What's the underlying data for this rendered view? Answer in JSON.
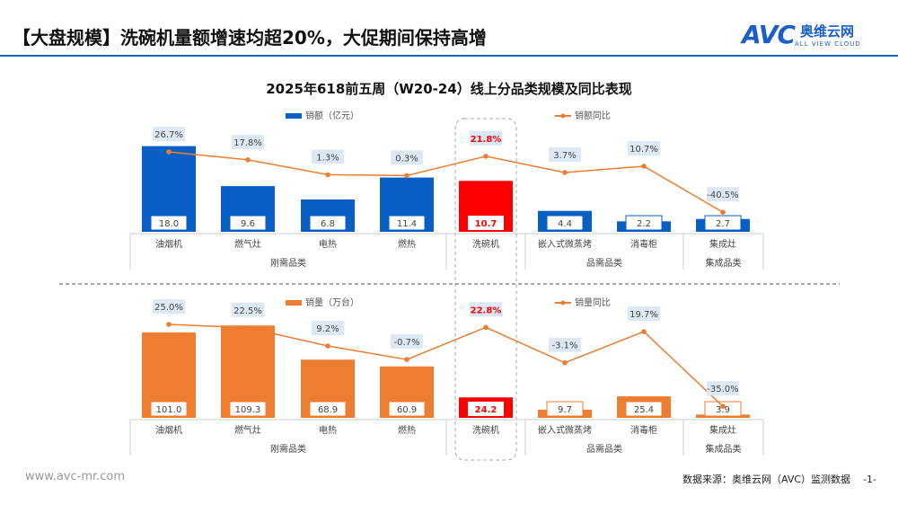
{
  "header": {
    "title": "【大盘规模】洗碗机量额增速均超20%，大促期间保持高增",
    "logo_text": "AVC",
    "logo_cn": "奥维云网",
    "logo_en": "ALL VIEW CLOUD"
  },
  "footer": {
    "website": "www.avc-mr.com",
    "source": "数据来源：奥维云网（AVC）监测数据",
    "page": "-1-"
  },
  "colors": {
    "blue": "#0a5fc4",
    "orange": "#ed7d31",
    "red": "#ff0000",
    "line": "#ed7d31"
  },
  "chart_data": [
    {
      "type": "bar",
      "title": "2025年618前五周（W20-24）线上分品类规模及同比表现",
      "categories": [
        "油烟机",
        "燃气灶",
        "电热",
        "燃热",
        "洗碗机",
        "嵌入式微蒸烤",
        "消毒柜",
        "集成灶"
      ],
      "groups": [
        {
          "label": "刚需品类",
          "span": 4
        },
        {
          "label": "",
          "span": 1
        },
        {
          "label": "品需品类",
          "span": 2
        },
        {
          "label": "集成品类",
          "span": 1
        }
      ],
      "series": [
        {
          "name": "销额（亿元）",
          "type": "bar",
          "values": [
            18.0,
            9.6,
            6.8,
            11.4,
            10.7,
            4.4,
            2.2,
            2.7
          ],
          "labels": [
            "18.0",
            "9.6",
            "6.8",
            "11.4",
            "10.7",
            "4.4",
            "2.2",
            "2.7"
          ]
        },
        {
          "name": "销额同比",
          "type": "line",
          "values": [
            26.7,
            17.8,
            1.3,
            0.3,
            21.8,
            3.7,
            10.7,
            -40.5
          ],
          "labels": [
            "26.7%",
            "17.8%",
            "1.3%",
            "0.3%",
            "21.8%",
            "3.7%",
            "10.7%",
            "-40.5%"
          ]
        }
      ],
      "highlight": "洗碗机"
    },
    {
      "type": "bar",
      "categories": [
        "油烟机",
        "燃气灶",
        "电热",
        "燃热",
        "洗碗机",
        "嵌入式微蒸烤",
        "消毒柜",
        "集成灶"
      ],
      "groups": [
        {
          "label": "刚需品类",
          "span": 4
        },
        {
          "label": "",
          "span": 1
        },
        {
          "label": "品需品类",
          "span": 2
        },
        {
          "label": "集成品类",
          "span": 1
        }
      ],
      "series": [
        {
          "name": "销量（万台）",
          "type": "bar",
          "values": [
            101.0,
            109.3,
            68.9,
            60.9,
            24.2,
            9.7,
            25.4,
            3.9
          ],
          "labels": [
            "101.0",
            "109.3",
            "68.9",
            "60.9",
            "24.2",
            "9.7",
            "25.4",
            "3.9"
          ]
        },
        {
          "name": "销量同比",
          "type": "line",
          "values": [
            25.0,
            22.5,
            9.2,
            -0.7,
            22.8,
            -3.1,
            19.7,
            -35.0
          ],
          "labels": [
            "25.0%",
            "22.5%",
            "9.2%",
            "-0.7%",
            "22.8%",
            "-3.1%",
            "19.7%",
            "-35.0%"
          ]
        }
      ],
      "highlight": "洗碗机"
    }
  ]
}
